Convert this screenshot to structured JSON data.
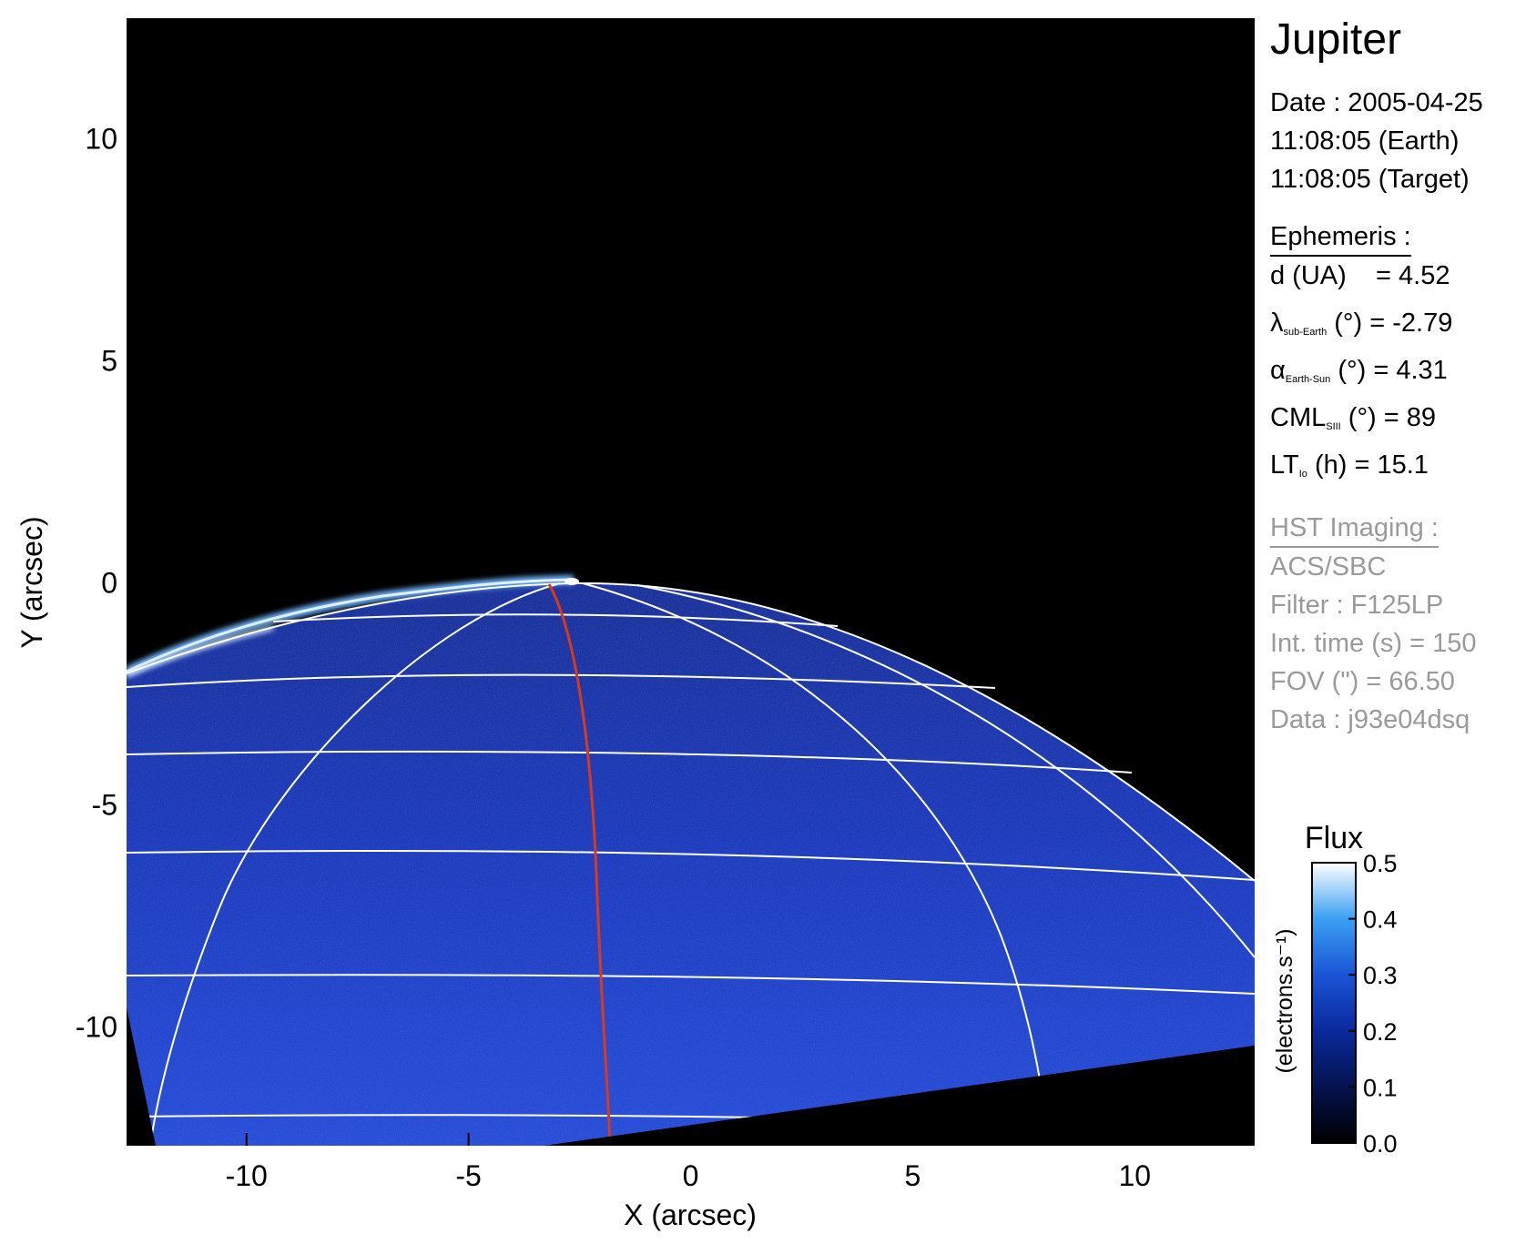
{
  "chart_data": {
    "type": "heatmap",
    "xlabel": "X (arcsec)",
    "ylabel": "Y (arcsec)",
    "xlim": [
      -12.7,
      12.7
    ],
    "ylim": [
      -12.7,
      12.7
    ],
    "xticks": [
      -10,
      -5,
      0,
      5,
      10
    ],
    "yticks": [
      10,
      5,
      0,
      -5,
      -10
    ],
    "colorbar": {
      "title": "Flux",
      "unit": "(electrons.s⁻¹)",
      "range": [
        0.0,
        0.5
      ],
      "ticks": [
        "0.5",
        "0.4",
        "0.3",
        "0.2",
        "0.1",
        "0.0"
      ],
      "colors": [
        "#000000",
        "#04124e",
        "#0a2a9c",
        "#1a54d6",
        "#3aa0f2",
        "#ffffff"
      ]
    },
    "grid_color": "#ffffff",
    "meridian_color": "#d83a1a"
  },
  "info": {
    "title": "Jupiter",
    "date_lines": [
      "Date : 2005-04-25",
      "11:08:05 (Earth)",
      "11:08:05 (Target)"
    ],
    "ephemeris_head": "Ephemeris :",
    "ephemeris": [
      {
        "sym": "d (UA)",
        "sub": "",
        "rest": "    = 4.52"
      },
      {
        "sym": "λ",
        "sub": "sub-Earth",
        "rest": " (°) = -2.79"
      },
      {
        "sym": "α",
        "sub": "Earth-Sun",
        "rest": " (°) = 4.31"
      },
      {
        "sym": "CML",
        "sub": "SIII",
        "rest": " (°) = 89"
      },
      {
        "sym": "LT",
        "sub": "Io",
        "rest": " (h) = 15.1"
      }
    ],
    "hst_head": "HST Imaging :",
    "hst": [
      "ACS/SBC",
      "Filter : F125LP",
      "Int. time (s) = 150",
      "FOV (\") = 66.50",
      "Data : j93e04dsq"
    ]
  }
}
